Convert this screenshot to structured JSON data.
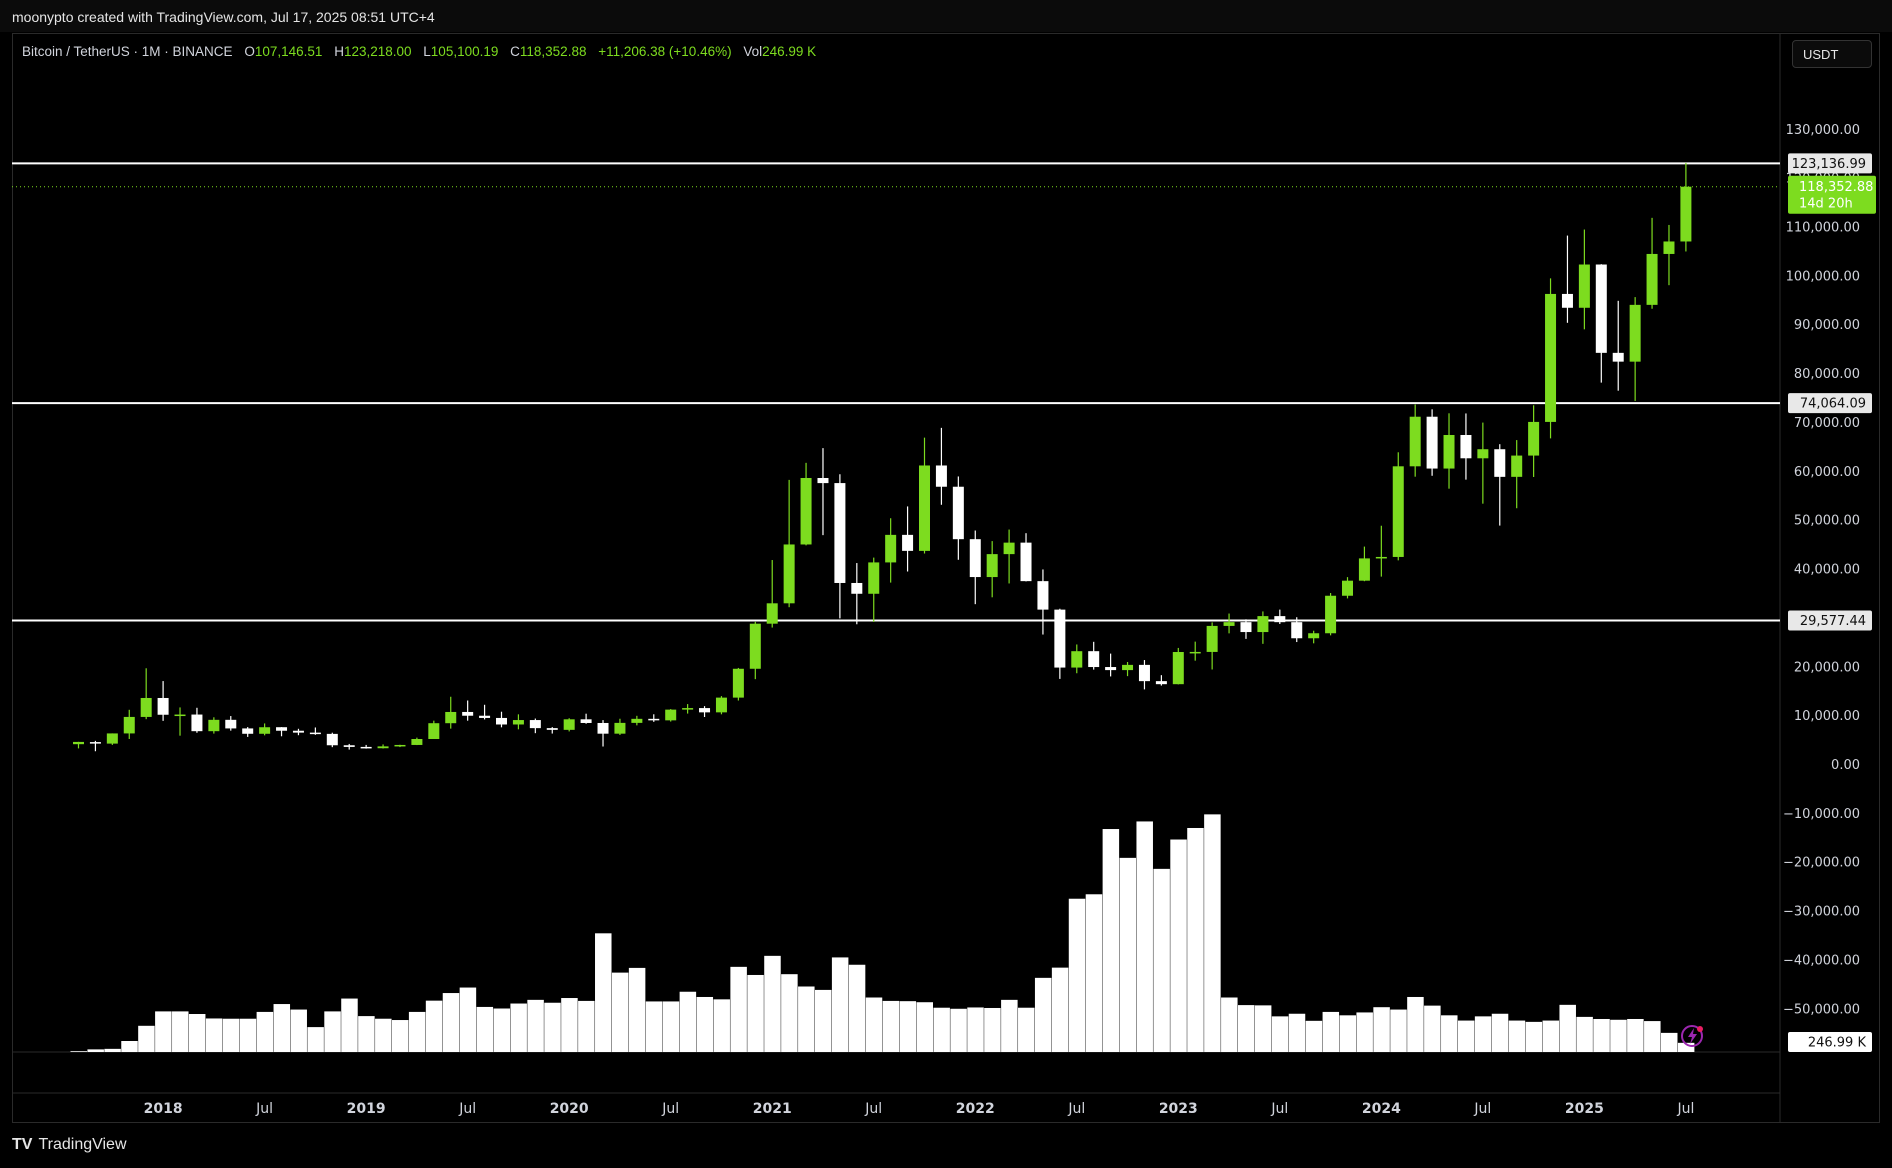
{
  "header": {
    "credit": "moonypto created with TradingView.com, Jul 17, 2025 08:51 UTC+4"
  },
  "legend": {
    "symbol": "Bitcoin / TetherUS · 1M · BINANCE",
    "open_label": "O",
    "open": "107,146.51",
    "high_label": "H",
    "high": "123,218.00",
    "low_label": "L",
    "low": "105,100.19",
    "close_label": "C",
    "close": "118,352.88",
    "change": "+11,206.38 (+10.46%)",
    "vol_label": "Vol",
    "vol": "246.99 K"
  },
  "currency": "USDT",
  "footer": {
    "brand": "TradingView",
    "logo": "TV"
  },
  "colors": {
    "up": "#7ddc1f",
    "down": "#ffffff",
    "background": "#000000",
    "hline": "#ffffff",
    "last_price": "#7ddc1f"
  },
  "chart_data": {
    "type": "candlestick",
    "timeframe": "1M",
    "ylim": [
      -58000,
      137000
    ],
    "y_ticks": [
      130000,
      120000,
      110000,
      100000,
      90000,
      80000,
      70000,
      60000,
      50000,
      40000,
      30000,
      20000,
      10000,
      0,
      -10000,
      -20000,
      -30000,
      -40000,
      -50000
    ],
    "y_tick_labels": [
      "130,000.00",
      "120,000.00",
      "110,000.00",
      "100,000.00",
      "90,000.00",
      "80,000.00",
      "70,000.00",
      "60,000.00",
      "50,000.00",
      "40,000.00",
      "30,000.00",
      "20,000.00",
      "10,000.00",
      "0.00",
      "−10,000.00",
      "−20,000.00",
      "−30,000.00",
      "−40,000.00",
      "−50,000.00"
    ],
    "x_labels": [
      {
        "label": "2018",
        "month": "2018-01",
        "year": true
      },
      {
        "label": "Jul",
        "month": "2018-07",
        "year": false
      },
      {
        "label": "2019",
        "month": "2019-01",
        "year": true
      },
      {
        "label": "Jul",
        "month": "2019-07",
        "year": false
      },
      {
        "label": "2020",
        "month": "2020-01",
        "year": true
      },
      {
        "label": "Jul",
        "month": "2020-07",
        "year": false
      },
      {
        "label": "2021",
        "month": "2021-01",
        "year": true
      },
      {
        "label": "Jul",
        "month": "2021-07",
        "year": false
      },
      {
        "label": "2022",
        "month": "2022-01",
        "year": true
      },
      {
        "label": "Jul",
        "month": "2022-07",
        "year": false
      },
      {
        "label": "2023",
        "month": "2023-01",
        "year": true
      },
      {
        "label": "Jul",
        "month": "2023-07",
        "year": false
      },
      {
        "label": "2024",
        "month": "2024-01",
        "year": true
      },
      {
        "label": "Jul",
        "month": "2024-07",
        "year": false
      },
      {
        "label": "2025",
        "month": "2025-01",
        "year": true
      },
      {
        "label": "Jul",
        "month": "2025-07",
        "year": false
      }
    ],
    "horizontal_lines": [
      {
        "value": 123136.99,
        "label": "123,136.99"
      },
      {
        "value": 74064.09,
        "label": "74,064.09"
      },
      {
        "value": 29577.44,
        "label": "29,577.44"
      }
    ],
    "last_price": {
      "value": 118352.88,
      "label": "118,352.88",
      "countdown": "14d 20h"
    },
    "volume_label": "246.99 K",
    "candles": [
      {
        "month": "2017-08",
        "o": 4261,
        "h": 4745,
        "l": 3400,
        "c": 4724
      },
      {
        "month": "2017-09",
        "o": 4689,
        "h": 4939,
        "l": 2817,
        "c": 4378
      },
      {
        "month": "2017-10",
        "o": 4378,
        "h": 6470,
        "l": 4110,
        "c": 6463
      },
      {
        "month": "2017-11",
        "o": 6463,
        "h": 11300,
        "l": 5325,
        "c": 9838
      },
      {
        "month": "2017-12",
        "o": 9838,
        "h": 19798,
        "l": 9380,
        "c": 13716
      },
      {
        "month": "2018-01",
        "o": 13716,
        "h": 17177,
        "l": 9035,
        "c": 10285
      },
      {
        "month": "2018-02",
        "o": 10285,
        "h": 11786,
        "l": 6000,
        "c": 10326
      },
      {
        "month": "2018-03",
        "o": 10326,
        "h": 11710,
        "l": 6600,
        "c": 6923
      },
      {
        "month": "2018-04",
        "o": 6922,
        "h": 9765,
        "l": 6430,
        "c": 9246
      },
      {
        "month": "2018-05",
        "o": 9246,
        "h": 10020,
        "l": 7032,
        "c": 7485
      },
      {
        "month": "2018-06",
        "o": 7485,
        "h": 7760,
        "l": 5750,
        "c": 6391
      },
      {
        "month": "2018-07",
        "o": 6391,
        "h": 8507,
        "l": 6070,
        "c": 7730
      },
      {
        "month": "2018-08",
        "o": 7735,
        "h": 7750,
        "l": 5880,
        "c": 7011
      },
      {
        "month": "2018-09",
        "o": 7011,
        "h": 7410,
        "l": 6100,
        "c": 6626
      },
      {
        "month": "2018-10",
        "o": 6626,
        "h": 7680,
        "l": 6180,
        "c": 6371
      },
      {
        "month": "2018-11",
        "o": 6370,
        "h": 6615,
        "l": 3652,
        "c": 4041
      },
      {
        "month": "2018-12",
        "o": 4041,
        "h": 4312,
        "l": 3156,
        "c": 3702
      },
      {
        "month": "2019-01",
        "o": 3702,
        "h": 4110,
        "l": 3350,
        "c": 3434
      },
      {
        "month": "2019-02",
        "o": 3434,
        "h": 4210,
        "l": 3374,
        "c": 3813
      },
      {
        "month": "2019-03",
        "o": 3814,
        "h": 4140,
        "l": 3670,
        "c": 4103
      },
      {
        "month": "2019-04",
        "o": 4103,
        "h": 5600,
        "l": 4080,
        "c": 5321
      },
      {
        "month": "2019-05",
        "o": 5320,
        "h": 9074,
        "l": 5320,
        "c": 8555
      },
      {
        "month": "2019-06",
        "o": 8555,
        "h": 13970,
        "l": 7444,
        "c": 10855
      },
      {
        "month": "2019-07",
        "o": 10855,
        "h": 13200,
        "l": 9071,
        "c": 10085
      },
      {
        "month": "2019-08",
        "o": 10085,
        "h": 12325,
        "l": 9320,
        "c": 9630
      },
      {
        "month": "2019-09",
        "o": 9630,
        "h": 10905,
        "l": 7710,
        "c": 8293
      },
      {
        "month": "2019-10",
        "o": 8294,
        "h": 10370,
        "l": 7300,
        "c": 9199
      },
      {
        "month": "2019-11",
        "o": 9199,
        "h": 9505,
        "l": 6515,
        "c": 7546
      },
      {
        "month": "2019-12",
        "o": 7546,
        "h": 7750,
        "l": 6435,
        "c": 7195
      },
      {
        "month": "2020-01",
        "o": 7195,
        "h": 9578,
        "l": 6871,
        "c": 9352
      },
      {
        "month": "2020-02",
        "o": 9352,
        "h": 10500,
        "l": 8450,
        "c": 8600
      },
      {
        "month": "2020-03",
        "o": 8600,
        "h": 9188,
        "l": 3782,
        "c": 6410
      },
      {
        "month": "2020-04",
        "o": 6412,
        "h": 9467,
        "l": 6150,
        "c": 8620
      },
      {
        "month": "2020-05",
        "o": 8620,
        "h": 10067,
        "l": 8117,
        "c": 9448
      },
      {
        "month": "2020-06",
        "o": 9448,
        "h": 10380,
        "l": 8833,
        "c": 9138
      },
      {
        "month": "2020-07",
        "o": 9138,
        "h": 11444,
        "l": 8893,
        "c": 11335
      },
      {
        "month": "2020-08",
        "o": 11335,
        "h": 12468,
        "l": 10525,
        "c": 11649
      },
      {
        "month": "2020-09",
        "o": 11649,
        "h": 12050,
        "l": 9825,
        "c": 10776
      },
      {
        "month": "2020-10",
        "o": 10776,
        "h": 14100,
        "l": 10375,
        "c": 13792
      },
      {
        "month": "2020-11",
        "o": 13791,
        "h": 19863,
        "l": 13195,
        "c": 19695
      },
      {
        "month": "2020-12",
        "o": 19695,
        "h": 29300,
        "l": 17572,
        "c": 28923
      },
      {
        "month": "2021-01",
        "o": 28923,
        "h": 41950,
        "l": 28130,
        "c": 33092
      },
      {
        "month": "2021-02",
        "o": 33092,
        "h": 58352,
        "l": 32296,
        "c": 45135
      },
      {
        "month": "2021-03",
        "o": 45134,
        "h": 61844,
        "l": 44950,
        "c": 58740
      },
      {
        "month": "2021-04",
        "o": 58739,
        "h": 64854,
        "l": 47044,
        "c": 57694
      },
      {
        "month": "2021-05",
        "o": 57697,
        "h": 59500,
        "l": 30000,
        "c": 37253
      },
      {
        "month": "2021-06",
        "o": 37254,
        "h": 41330,
        "l": 28805,
        "c": 35045
      },
      {
        "month": "2021-07",
        "o": 35045,
        "h": 42448,
        "l": 29278,
        "c": 41461
      },
      {
        "month": "2021-08",
        "o": 41461,
        "h": 50500,
        "l": 37332,
        "c": 47100
      },
      {
        "month": "2021-09",
        "o": 47100,
        "h": 52920,
        "l": 39600,
        "c": 43824
      },
      {
        "month": "2021-10",
        "o": 43820,
        "h": 67000,
        "l": 43283,
        "c": 61300
      },
      {
        "month": "2021-11",
        "o": 61300,
        "h": 69000,
        "l": 53256,
        "c": 56950
      },
      {
        "month": "2021-12",
        "o": 56950,
        "h": 59053,
        "l": 42000,
        "c": 46217
      },
      {
        "month": "2022-01",
        "o": 46217,
        "h": 47990,
        "l": 32917,
        "c": 38466
      },
      {
        "month": "2022-02",
        "o": 38466,
        "h": 45821,
        "l": 34322,
        "c": 43160
      },
      {
        "month": "2022-03",
        "o": 43160,
        "h": 48190,
        "l": 37155,
        "c": 45510
      },
      {
        "month": "2022-04",
        "o": 45510,
        "h": 47444,
        "l": 37578,
        "c": 37630
      },
      {
        "month": "2022-05",
        "o": 37630,
        "h": 40023,
        "l": 26700,
        "c": 31801
      },
      {
        "month": "2022-06",
        "o": 31801,
        "h": 31982,
        "l": 17622,
        "c": 19942
      },
      {
        "month": "2022-07",
        "o": 19942,
        "h": 24668,
        "l": 18781,
        "c": 23293
      },
      {
        "month": "2022-08",
        "o": 23296,
        "h": 25211,
        "l": 19520,
        "c": 20050
      },
      {
        "month": "2022-09",
        "o": 20050,
        "h": 22799,
        "l": 18125,
        "c": 19423
      },
      {
        "month": "2022-10",
        "o": 19423,
        "h": 21085,
        "l": 18190,
        "c": 20491
      },
      {
        "month": "2022-11",
        "o": 20491,
        "h": 21480,
        "l": 15476,
        "c": 17164
      },
      {
        "month": "2022-12",
        "o": 17165,
        "h": 18387,
        "l": 16256,
        "c": 16542
      },
      {
        "month": "2023-01",
        "o": 16542,
        "h": 23960,
        "l": 16500,
        "c": 23125
      },
      {
        "month": "2023-02",
        "o": 23125,
        "h": 25250,
        "l": 21351,
        "c": 23141
      },
      {
        "month": "2023-03",
        "o": 23141,
        "h": 29184,
        "l": 19549,
        "c": 28465
      },
      {
        "month": "2023-04",
        "o": 28465,
        "h": 31000,
        "l": 26942,
        "c": 29233
      },
      {
        "month": "2023-05",
        "o": 29233,
        "h": 29820,
        "l": 25811,
        "c": 27210
      },
      {
        "month": "2023-06",
        "o": 27210,
        "h": 31431,
        "l": 24800,
        "c": 30472
      },
      {
        "month": "2023-07",
        "o": 30472,
        "h": 31804,
        "l": 28861,
        "c": 29232
      },
      {
        "month": "2023-08",
        "o": 29232,
        "h": 30244,
        "l": 25166,
        "c": 25940
      },
      {
        "month": "2023-09",
        "o": 25940,
        "h": 27483,
        "l": 24901,
        "c": 26963
      },
      {
        "month": "2023-10",
        "o": 26963,
        "h": 35198,
        "l": 26538,
        "c": 34639
      },
      {
        "month": "2023-11",
        "o": 34640,
        "h": 38450,
        "l": 34097,
        "c": 37723
      },
      {
        "month": "2023-12",
        "o": 37723,
        "h": 44700,
        "l": 37615,
        "c": 42284
      },
      {
        "month": "2024-01",
        "o": 42284,
        "h": 48969,
        "l": 38555,
        "c": 42580
      },
      {
        "month": "2024-02",
        "o": 42580,
        "h": 64000,
        "l": 41884,
        "c": 61130
      },
      {
        "month": "2024-03",
        "o": 61131,
        "h": 73777,
        "l": 59005,
        "c": 71280
      },
      {
        "month": "2024-04",
        "o": 71280,
        "h": 72797,
        "l": 59191,
        "c": 60672
      },
      {
        "month": "2024-05",
        "o": 60672,
        "h": 71980,
        "l": 56552,
        "c": 67540
      },
      {
        "month": "2024-06",
        "o": 67540,
        "h": 71950,
        "l": 58402,
        "c": 62772
      },
      {
        "month": "2024-07",
        "o": 62772,
        "h": 70080,
        "l": 53485,
        "c": 64628
      },
      {
        "month": "2024-08",
        "o": 64628,
        "h": 65660,
        "l": 49000,
        "c": 58973
      },
      {
        "month": "2024-09",
        "o": 58974,
        "h": 66499,
        "l": 52550,
        "c": 63328
      },
      {
        "month": "2024-10",
        "o": 63328,
        "h": 73620,
        "l": 58946,
        "c": 70215
      },
      {
        "month": "2024-11",
        "o": 70216,
        "h": 99588,
        "l": 66835,
        "c": 96408
      },
      {
        "month": "2024-12",
        "o": 96408,
        "h": 108353,
        "l": 90500,
        "c": 93577
      },
      {
        "month": "2025-01",
        "o": 93577,
        "h": 109588,
        "l": 89164,
        "c": 102430
      },
      {
        "month": "2025-02",
        "o": 102430,
        "h": 102500,
        "l": 78258,
        "c": 84350
      },
      {
        "month": "2025-03",
        "o": 84350,
        "h": 95000,
        "l": 76606,
        "c": 82551
      },
      {
        "month": "2025-04",
        "o": 82550,
        "h": 95759,
        "l": 74508,
        "c": 94172
      },
      {
        "month": "2025-05",
        "o": 94172,
        "h": 111980,
        "l": 93377,
        "c": 104592
      },
      {
        "month": "2025-06",
        "o": 104592,
        "h": 110530,
        "l": 98200,
        "c": 107146
      },
      {
        "month": "2025-07",
        "o": 107146,
        "h": 123218,
        "l": 105100,
        "c": 118353
      }
    ],
    "volume": [
      0.3,
      1.0,
      1.2,
      4.2,
      10.0,
      15.5,
      15.5,
      14.5,
      12.8,
      12.7,
      12.7,
      15.3,
      18.3,
      16.2,
      9.5,
      15.5,
      20.4,
      13.7,
      12.7,
      12.2,
      15.3,
      19.6,
      22.5,
      24.6,
      17.2,
      16.6,
      18.5,
      19.9,
      18.8,
      20.6,
      19.5,
      45.3,
      30.3,
      32.1,
      19.3,
      19.3,
      23.0,
      21.0,
      20.1,
      32.5,
      29.4,
      36.7,
      29.7,
      25.0,
      23.7,
      36.1,
      33.3,
      20.8,
      19.5,
      19.4,
      19.0,
      16.9,
      16.5,
      17.0,
      16.8,
      19.9,
      16.9,
      28.3,
      32.2,
      58.5,
      60.2,
      85.1,
      74.1,
      88.0,
      69.9,
      81.1,
      85.5,
      90.7,
      20.8,
      17.9,
      17.8,
      13.6,
      14.6,
      11.9,
      15.3,
      14.0,
      15.1,
      17.1,
      16.2,
      21.0,
      17.7,
      14.0,
      12.0,
      13.6,
      14.6,
      12.0,
      11.5,
      12.0,
      18.0,
      13.4,
      12.6,
      12.3,
      12.6,
      11.8,
      7.3,
      3.5
    ],
    "volume_axis_max": 100
  }
}
